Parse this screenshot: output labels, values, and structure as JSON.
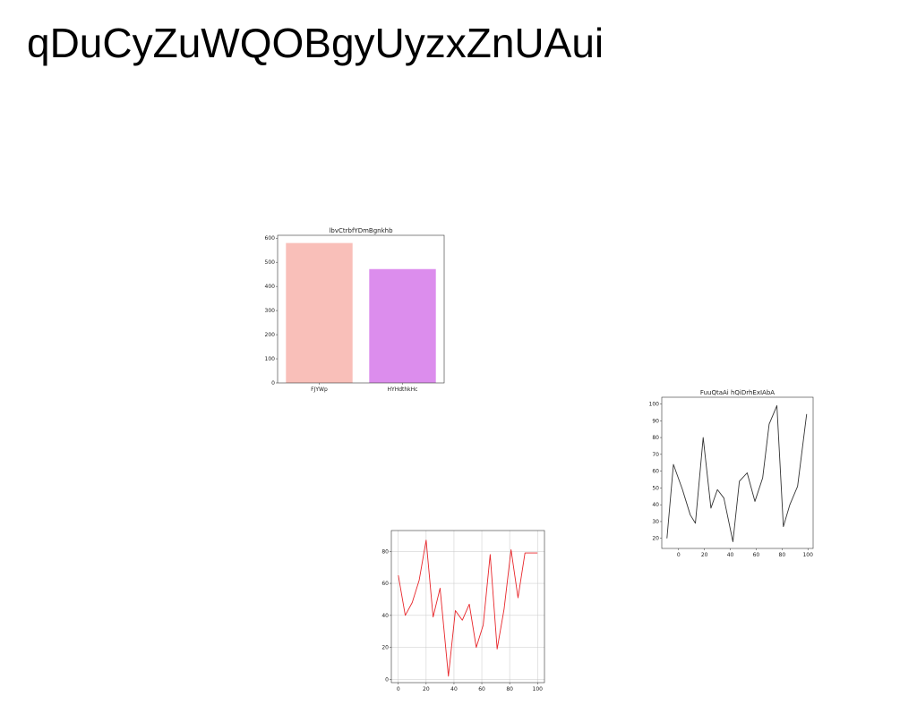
{
  "page": {
    "title": "qDuCyZuWQOBgyUyzxZnUAui"
  },
  "chart_data": [
    {
      "type": "bar",
      "title": "lbvCtrbfYDmBgnkhb",
      "categories": [
        "FJYWp",
        "HYHdthkHc"
      ],
      "values": [
        580,
        472
      ],
      "colors": [
        "#f9bfb9",
        "#dc8ded"
      ],
      "xlabel": "",
      "ylabel": "",
      "ylim": [
        0,
        612
      ],
      "yticks": [
        0,
        100,
        200,
        300,
        400,
        500,
        600
      ],
      "grid": false
    },
    {
      "type": "line",
      "title": "FuuQtaAi hQiDrhExIAbA",
      "x": [
        -9,
        -4,
        3,
        9,
        13,
        19,
        25,
        30,
        35,
        42,
        47,
        53,
        59,
        65,
        70,
        76,
        81,
        86,
        92,
        99
      ],
      "series": [
        {
          "color": "#333333",
          "values": [
            20,
            64,
            49,
            34,
            29,
            80,
            38,
            49,
            44,
            18,
            54,
            59,
            42,
            56,
            88,
            99,
            27,
            40,
            51,
            94
          ]
        }
      ],
      "xlim": [
        -13,
        104
      ],
      "ylim": [
        14,
        104
      ],
      "xticks": [
        0,
        20,
        40,
        60,
        80,
        100
      ],
      "yticks": [
        20,
        30,
        40,
        50,
        60,
        70,
        80,
        90,
        100
      ],
      "xlabel": "",
      "ylabel": "",
      "grid": false
    },
    {
      "type": "line",
      "title": "",
      "x": [
        0,
        5,
        10,
        15,
        20,
        25,
        30,
        36,
        41,
        46,
        51,
        56,
        61,
        66,
        71,
        76,
        81,
        86,
        91,
        97,
        100
      ],
      "series": [
        {
          "color": "#e8262a",
          "values": [
            65,
            40,
            48,
            62,
            87,
            39,
            57,
            2,
            43,
            37,
            47,
            20,
            34,
            78,
            19,
            44,
            81,
            51,
            79,
            79,
            79
          ]
        }
      ],
      "xlim": [
        -5,
        105
      ],
      "ylim": [
        -2,
        93
      ],
      "xticks": [
        0,
        20,
        40,
        60,
        80,
        100
      ],
      "yticks": [
        0,
        20,
        40,
        60,
        80
      ],
      "xlabel": "",
      "ylabel": "",
      "grid": true
    }
  ]
}
